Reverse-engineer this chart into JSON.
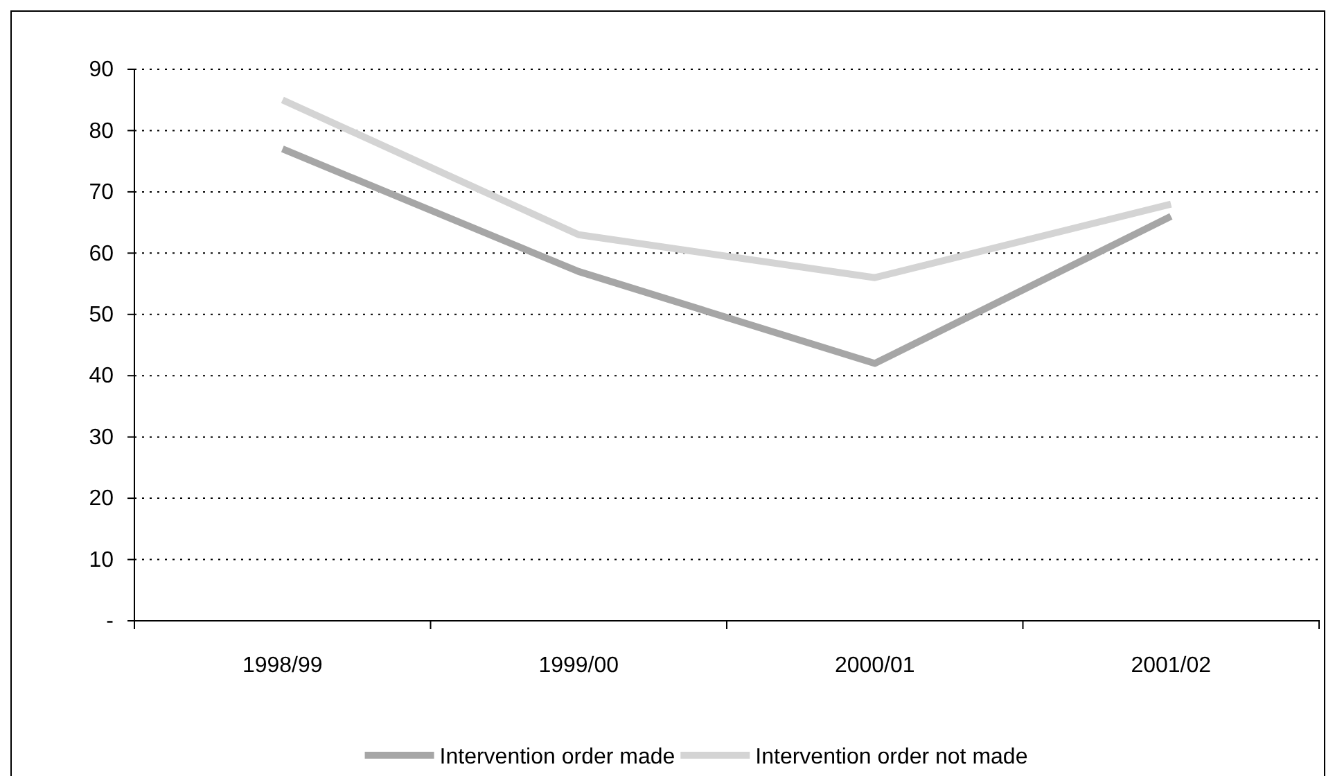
{
  "chart_data": {
    "type": "line",
    "categories": [
      "1998/99",
      "1999/00",
      "2000/01",
      "2001/02"
    ],
    "series": [
      {
        "name": "Intervention order made",
        "color": "#a6a6a6",
        "values": [
          77,
          57,
          42,
          66
        ]
      },
      {
        "name": "Intervention order not made",
        "color": "#d4d4d4",
        "values": [
          85,
          63,
          56,
          68
        ]
      }
    ],
    "ylim": [
      0,
      90
    ],
    "yticks": [
      {
        "value": 0,
        "label": "-"
      },
      10,
      20,
      30,
      40,
      50,
      60,
      70,
      80,
      90
    ],
    "grid": "y",
    "legend": "bottom",
    "marker": "none",
    "line_style": "solid"
  }
}
